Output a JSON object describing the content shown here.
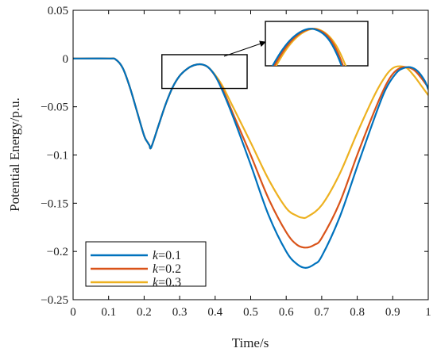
{
  "chart_data": {
    "type": "line",
    "xlabel": "Time/s",
    "ylabel": "Potential Energy/p.u.",
    "xlim": [
      0,
      1
    ],
    "ylim": [
      -0.25,
      0.05
    ],
    "xticks": [
      "0",
      "0.1",
      "0.2",
      "0.3",
      "0.4",
      "0.5",
      "0.6",
      "0.7",
      "0.8",
      "0.9",
      "1"
    ],
    "yticks": [
      "0.05",
      "0",
      "-0.05",
      "-0.1",
      "-0.15",
      "-0.2",
      "-0.25"
    ],
    "legend_position": "bottom-left",
    "legend_symbol": "k",
    "series": [
      {
        "name": "=0.1",
        "color": "#0072BD",
        "points": [
          [
            0,
            0
          ],
          [
            0.1,
            0
          ],
          [
            0.12,
            -0.001
          ],
          [
            0.14,
            -0.01
          ],
          [
            0.16,
            -0.03
          ],
          [
            0.18,
            -0.055
          ],
          [
            0.2,
            -0.08
          ],
          [
            0.21,
            -0.087
          ],
          [
            0.215,
            -0.09
          ],
          [
            0.22,
            -0.092
          ],
          [
            0.24,
            -0.07
          ],
          [
            0.26,
            -0.048
          ],
          [
            0.28,
            -0.03
          ],
          [
            0.3,
            -0.018
          ],
          [
            0.32,
            -0.011
          ],
          [
            0.34,
            -0.007
          ],
          [
            0.36,
            -0.006
          ],
          [
            0.38,
            -0.009
          ],
          [
            0.4,
            -0.018
          ],
          [
            0.42,
            -0.033
          ],
          [
            0.45,
            -0.06
          ],
          [
            0.5,
            -0.11
          ],
          [
            0.55,
            -0.162
          ],
          [
            0.6,
            -0.2
          ],
          [
            0.63,
            -0.213
          ],
          [
            0.655,
            -0.217
          ],
          [
            0.68,
            -0.213
          ],
          [
            0.7,
            -0.205
          ],
          [
            0.75,
            -0.165
          ],
          [
            0.8,
            -0.112
          ],
          [
            0.85,
            -0.06
          ],
          [
            0.88,
            -0.032
          ],
          [
            0.91,
            -0.015
          ],
          [
            0.93,
            -0.01
          ],
          [
            0.95,
            -0.009
          ],
          [
            0.97,
            -0.013
          ],
          [
            0.99,
            -0.023
          ],
          [
            1.0,
            -0.032
          ]
        ]
      },
      {
        "name": "=0.2",
        "color": "#D95319",
        "points": [
          [
            0,
            0
          ],
          [
            0.1,
            0
          ],
          [
            0.12,
            -0.001
          ],
          [
            0.14,
            -0.01
          ],
          [
            0.16,
            -0.03
          ],
          [
            0.18,
            -0.055
          ],
          [
            0.2,
            -0.08
          ],
          [
            0.21,
            -0.087
          ],
          [
            0.215,
            -0.09
          ],
          [
            0.22,
            -0.092
          ],
          [
            0.24,
            -0.07
          ],
          [
            0.26,
            -0.048
          ],
          [
            0.28,
            -0.03
          ],
          [
            0.3,
            -0.018
          ],
          [
            0.32,
            -0.011
          ],
          [
            0.34,
            -0.007
          ],
          [
            0.36,
            -0.006
          ],
          [
            0.38,
            -0.009
          ],
          [
            0.4,
            -0.018
          ],
          [
            0.42,
            -0.031
          ],
          [
            0.45,
            -0.057
          ],
          [
            0.5,
            -0.1
          ],
          [
            0.55,
            -0.145
          ],
          [
            0.6,
            -0.18
          ],
          [
            0.63,
            -0.193
          ],
          [
            0.655,
            -0.196
          ],
          [
            0.68,
            -0.193
          ],
          [
            0.7,
            -0.186
          ],
          [
            0.75,
            -0.15
          ],
          [
            0.8,
            -0.1
          ],
          [
            0.85,
            -0.053
          ],
          [
            0.88,
            -0.028
          ],
          [
            0.9,
            -0.016
          ],
          [
            0.92,
            -0.01
          ],
          [
            0.94,
            -0.009
          ],
          [
            0.96,
            -0.012
          ],
          [
            0.98,
            -0.02
          ],
          [
            1.0,
            -0.03
          ]
        ]
      },
      {
        "name": "=0.3",
        "color": "#EDB120",
        "points": [
          [
            0,
            0
          ],
          [
            0.1,
            0
          ],
          [
            0.12,
            -0.001
          ],
          [
            0.14,
            -0.01
          ],
          [
            0.16,
            -0.03
          ],
          [
            0.18,
            -0.055
          ],
          [
            0.2,
            -0.08
          ],
          [
            0.21,
            -0.087
          ],
          [
            0.215,
            -0.09
          ],
          [
            0.22,
            -0.092
          ],
          [
            0.24,
            -0.07
          ],
          [
            0.26,
            -0.048
          ],
          [
            0.28,
            -0.03
          ],
          [
            0.3,
            -0.018
          ],
          [
            0.32,
            -0.011
          ],
          [
            0.34,
            -0.007
          ],
          [
            0.36,
            -0.006
          ],
          [
            0.38,
            -0.009
          ],
          [
            0.4,
            -0.017
          ],
          [
            0.42,
            -0.028
          ],
          [
            0.45,
            -0.05
          ],
          [
            0.5,
            -0.087
          ],
          [
            0.55,
            -0.125
          ],
          [
            0.6,
            -0.155
          ],
          [
            0.63,
            -0.163
          ],
          [
            0.645,
            -0.165
          ],
          [
            0.66,
            -0.164
          ],
          [
            0.7,
            -0.152
          ],
          [
            0.75,
            -0.12
          ],
          [
            0.8,
            -0.077
          ],
          [
            0.85,
            -0.037
          ],
          [
            0.88,
            -0.018
          ],
          [
            0.9,
            -0.01
          ],
          [
            0.92,
            -0.008
          ],
          [
            0.94,
            -0.01
          ],
          [
            0.96,
            -0.018
          ],
          [
            0.98,
            -0.028
          ],
          [
            1.0,
            -0.038
          ]
        ]
      }
    ],
    "zoom_box_data_range": {
      "x": [
        0.25,
        0.49
      ],
      "y": [
        -0.031,
        0.004
      ]
    }
  }
}
